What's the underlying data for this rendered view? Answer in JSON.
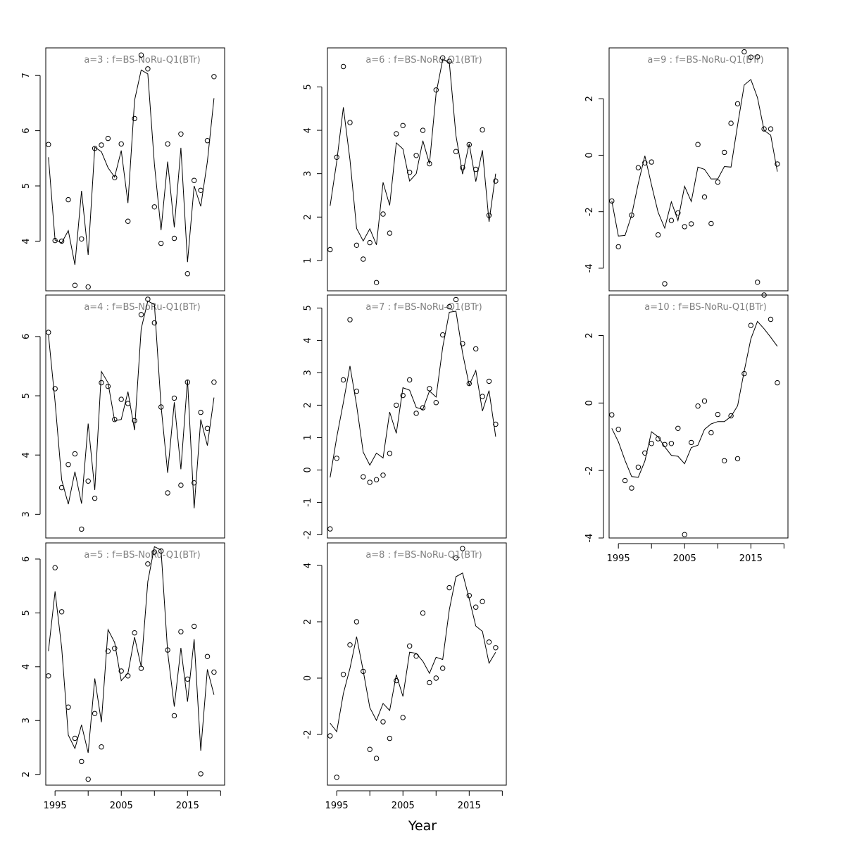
{
  "figure": {
    "xlabel": "Year"
  },
  "chart_data": [
    {
      "type": "line",
      "title": "a=3  :  f=BS-NoRu-Q1(BTr)",
      "x": [
        1994,
        1995,
        1996,
        1997,
        1998,
        1999,
        2000,
        2001,
        2002,
        2003,
        2004,
        2005,
        2006,
        2007,
        2008,
        2009,
        2010,
        2011,
        2012,
        2013,
        2014,
        2015,
        2016,
        2017,
        2018,
        2019
      ],
      "series": [
        {
          "values": [
            5.75,
            4.01,
            4.0,
            4.75,
            3.2,
            4.04,
            3.17,
            5.68,
            5.74,
            5.86,
            5.15,
            5.76,
            4.36,
            6.22,
            7.37,
            7.12,
            4.62,
            3.96,
            5.76,
            4.05,
            5.94,
            3.41,
            5.1,
            4.92,
            5.82,
            6.98
          ]
        },
        {
          "values": [
            5.52,
            4.02,
            3.97,
            4.19,
            3.57,
            4.91,
            3.75,
            5.7,
            5.62,
            5.33,
            5.16,
            5.64,
            4.69,
            6.55,
            7.1,
            7.03,
            5.39,
            4.2,
            5.44,
            4.25,
            5.69,
            3.62,
            5.0,
            4.63,
            5.44,
            6.59
          ]
        }
      ],
      "ylim": [
        3.1,
        7.5
      ],
      "yticks": [
        4,
        5,
        6,
        7
      ],
      "xticks": []
    },
    {
      "type": "line",
      "title": "a=4  :  f=BS-NoRu-Q1(BTr)",
      "x": [
        1994,
        1995,
        1996,
        1997,
        1998,
        1999,
        2000,
        2001,
        2002,
        2003,
        2004,
        2005,
        2006,
        2007,
        2008,
        2009,
        2010,
        2011,
        2012,
        2013,
        2014,
        2015,
        2016,
        2017,
        2018,
        2019
      ],
      "series": [
        {
          "values": [
            6.07,
            5.12,
            3.45,
            3.84,
            4.02,
            2.75,
            3.56,
            3.27,
            5.22,
            5.16,
            4.6,
            4.94,
            4.87,
            4.58,
            6.37,
            6.63,
            6.23,
            4.81,
            3.36,
            4.96,
            3.49,
            5.23,
            3.53,
            4.72,
            4.45,
            5.23
          ]
        },
        {
          "values": [
            6.03,
            4.9,
            3.58,
            3.17,
            3.72,
            3.18,
            4.53,
            3.41,
            5.41,
            5.22,
            4.58,
            4.6,
            5.07,
            4.42,
            6.13,
            6.6,
            6.54,
            4.83,
            3.7,
            4.89,
            3.76,
            5.27,
            3.1,
            4.6,
            4.16,
            4.97
          ]
        }
      ],
      "ylim": [
        2.6,
        6.7
      ],
      "yticks": [
        3,
        4,
        5,
        6
      ],
      "xticks": []
    },
    {
      "type": "line",
      "title": "a=5  :  f=BS-NoRu-Q1(BTr)",
      "x": [
        1994,
        1995,
        1996,
        1997,
        1998,
        1999,
        2000,
        2001,
        2002,
        2003,
        2004,
        2005,
        2006,
        2007,
        2008,
        2009,
        2010,
        2011,
        2012,
        2013,
        2014,
        2015,
        2016,
        2017,
        2018,
        2019
      ],
      "series": [
        {
          "values": [
            3.83,
            5.84,
            5.02,
            3.25,
            2.67,
            2.24,
            1.91,
            3.13,
            2.51,
            4.29,
            4.34,
            3.92,
            3.83,
            4.63,
            3.97,
            5.91,
            6.13,
            6.15,
            4.31,
            3.09,
            4.65,
            3.77,
            4.75,
            2.01,
            4.19,
            3.9
          ]
        },
        {
          "values": [
            4.29,
            5.4,
            4.35,
            2.73,
            2.48,
            2.92,
            2.4,
            3.78,
            2.97,
            4.69,
            4.45,
            3.74,
            3.88,
            4.55,
            4.0,
            5.58,
            6.23,
            6.17,
            4.27,
            3.26,
            4.35,
            3.35,
            4.51,
            2.44,
            3.95,
            3.48
          ]
        }
      ],
      "ylim": [
        1.8,
        6.3
      ],
      "yticks": [
        2,
        3,
        4,
        5,
        6
      ],
      "xticks": [
        1995,
        2005,
        2015
      ]
    },
    {
      "type": "line",
      "title": "a=6  :  f=BS-NoRu-Q1(BTr)",
      "x": [
        1994,
        1995,
        1996,
        1997,
        1998,
        1999,
        2000,
        2001,
        2002,
        2003,
        2004,
        2005,
        2006,
        2007,
        2008,
        2009,
        2010,
        2011,
        2012,
        2013,
        2014,
        2015,
        2016,
        2017,
        2018,
        2019
      ],
      "series": [
        {
          "values": [
            1.25,
            3.38,
            5.47,
            4.18,
            1.35,
            1.03,
            1.41,
            0.49,
            2.07,
            1.63,
            3.92,
            4.11,
            3.03,
            3.42,
            4.0,
            3.23,
            4.93,
            5.67,
            5.59,
            3.51,
            3.14,
            3.67,
            3.1,
            4.01,
            2.04,
            2.83
          ]
        },
        {
          "values": [
            2.26,
            3.28,
            4.53,
            3.32,
            1.74,
            1.45,
            1.73,
            1.36,
            2.8,
            2.27,
            3.71,
            3.57,
            2.83,
            3.0,
            3.76,
            3.23,
            4.85,
            5.63,
            5.56,
            3.88,
            2.99,
            3.69,
            2.82,
            3.54,
            1.89,
            3.0
          ]
        }
      ],
      "ylim": [
        0.3,
        5.9
      ],
      "yticks": [
        1,
        2,
        3,
        4,
        5
      ],
      "xticks": []
    },
    {
      "type": "line",
      "title": "a=7  :  f=BS-NoRu-Q1(BTr)",
      "x": [
        1994,
        1995,
        1996,
        1997,
        1998,
        1999,
        2000,
        2001,
        2002,
        2003,
        2004,
        2005,
        2006,
        2007,
        2008,
        2009,
        2010,
        2011,
        2012,
        2013,
        2014,
        2015,
        2016,
        2017,
        2018,
        2019
      ],
      "series": [
        {
          "values": [
            -1.82,
            0.36,
            2.78,
            4.64,
            2.43,
            -0.21,
            -0.38,
            -0.3,
            -0.16,
            0.51,
            2.0,
            2.3,
            2.78,
            1.75,
            1.92,
            2.51,
            2.08,
            4.17,
            5.04,
            5.26,
            3.9,
            2.67,
            3.74,
            2.27,
            2.74,
            1.41
          ]
        },
        {
          "values": [
            -0.23,
            1.01,
            2.08,
            3.21,
            2.0,
            0.55,
            0.15,
            0.52,
            0.37,
            1.79,
            1.13,
            2.54,
            2.46,
            1.93,
            1.87,
            2.44,
            2.25,
            3.79,
            4.87,
            4.9,
            3.61,
            2.62,
            3.07,
            1.82,
            2.45,
            1.03
          ]
        }
      ],
      "ylim": [
        -2.1,
        5.4
      ],
      "yticks": [
        -2,
        -1,
        0,
        1,
        2,
        3,
        4,
        5
      ],
      "xticks": []
    },
    {
      "type": "line",
      "title": "a=8  :  f=BS-NoRu-Q1(BTr)",
      "x": [
        1994,
        1995,
        1996,
        1997,
        1998,
        1999,
        2000,
        2001,
        2002,
        2003,
        2004,
        2005,
        2006,
        2007,
        2008,
        2009,
        2010,
        2011,
        2012,
        2013,
        2014,
        2015,
        2016,
        2017,
        2018,
        2019
      ],
      "series": [
        {
          "values": [
            -2.05,
            -3.52,
            0.13,
            1.18,
            2.0,
            0.24,
            -2.53,
            -2.85,
            -1.55,
            -2.14,
            -0.09,
            -1.4,
            1.14,
            0.78,
            2.31,
            -0.16,
            0.0,
            0.35,
            3.21,
            4.27,
            4.6,
            2.93,
            2.52,
            2.72,
            1.28,
            1.08
          ]
        },
        {
          "values": [
            -1.6,
            -1.9,
            -0.55,
            0.35,
            1.47,
            0.26,
            -1.05,
            -1.5,
            -0.9,
            -1.15,
            0.12,
            -0.65,
            0.92,
            0.88,
            0.6,
            0.17,
            0.74,
            0.66,
            2.43,
            3.6,
            3.73,
            2.82,
            1.85,
            1.66,
            0.53,
            0.92
          ]
        }
      ],
      "ylim": [
        -3.8,
        4.8
      ],
      "yticks": [
        -2,
        0,
        2,
        4
      ],
      "xticks": [
        1995,
        2005,
        2015
      ]
    },
    {
      "type": "line",
      "title": "a=9  :  f=BS-NoRu-Q1(BTr)",
      "x": [
        1994,
        1995,
        1996,
        1997,
        1998,
        1999,
        2000,
        2001,
        2002,
        2003,
        2004,
        2005,
        2006,
        2007,
        2008,
        2009,
        2010,
        2011,
        2012,
        2013,
        2014,
        2015,
        2016,
        2017,
        2018,
        2019
      ],
      "series": [
        {
          "values": [
            -1.62,
            -3.24,
            null,
            -2.12,
            -0.44,
            -0.27,
            -0.24,
            -2.82,
            -4.55,
            -2.31,
            -2.04,
            -2.53,
            -2.43,
            0.38,
            -1.48,
            -2.42,
            -0.95,
            0.1,
            1.13,
            1.82,
            3.66,
            3.47,
            3.48,
            0.93,
            0.93,
            -0.31
          ]
        },
        {
          "values": [
            -1.62,
            -2.86,
            -2.84,
            -2.12,
            -1.0,
            -0.02,
            -1.05,
            -2.02,
            -2.58,
            -1.65,
            -2.31,
            -1.1,
            -1.64,
            -0.42,
            -0.5,
            -0.84,
            -0.84,
            -0.4,
            -0.42,
            1.07,
            2.49,
            2.68,
            2.04,
            0.88,
            0.71,
            -0.58
          ]
        }
      ],
      "ylim": [
        -4.8,
        3.8
      ],
      "yticks": [
        -4,
        -2,
        0,
        2
      ],
      "xticks": []
    },
    {
      "type": "line",
      "title": "a=10  :  f=BS-NoRu-Q1(BTr)",
      "x": [
        1994,
        1995,
        1996,
        1997,
        1998,
        1999,
        2000,
        2001,
        2002,
        2003,
        2004,
        2005,
        2006,
        2007,
        2008,
        2009,
        2010,
        2011,
        2012,
        2013,
        2014,
        2015,
        2016,
        2017,
        2018,
        2019
      ],
      "series": [
        {
          "values": [
            -0.35,
            -0.78,
            -2.3,
            -2.52,
            -1.9,
            -1.48,
            -1.2,
            -1.06,
            -1.23,
            -1.2,
            -0.75,
            -3.9,
            -1.17,
            -0.09,
            0.06,
            -0.88,
            -0.34,
            -1.71,
            -0.38,
            -1.65,
            0.87,
            2.3,
            3.58,
            3.2,
            2.48,
            0.6
          ]
        },
        {
          "values": [
            -0.75,
            -1.15,
            -1.7,
            -2.18,
            -2.2,
            -1.72,
            -0.85,
            -1.0,
            -1.3,
            -1.55,
            -1.58,
            -1.8,
            -1.32,
            -1.25,
            -0.78,
            -0.62,
            -0.55,
            -0.55,
            -0.4,
            -0.08,
            0.95,
            1.9,
            2.42,
            2.2,
            1.95,
            1.68
          ]
        }
      ],
      "ylim": [
        -4.0,
        3.2
      ],
      "yticks": [
        -4,
        -2,
        0,
        2
      ],
      "xticks": [
        1995,
        2005,
        2015
      ]
    }
  ]
}
